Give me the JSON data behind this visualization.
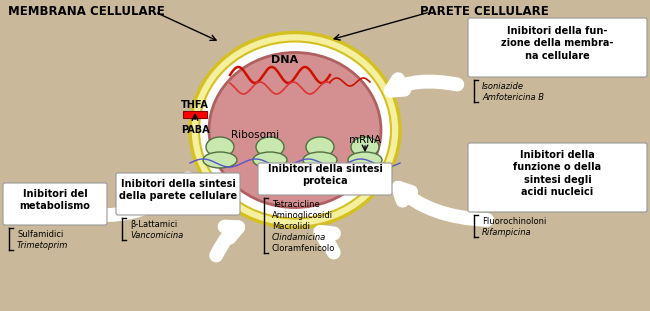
{
  "bg_color": "#c9b99a",
  "fig_width": 6.5,
  "fig_height": 3.11,
  "dpi": 100,
  "cell_wall_color": "#f5f0a0",
  "cell_wall_edge": "#d4c020",
  "cell_membrane_color": "#d49090",
  "cell_membrane_edge": "#b06060",
  "title_membrana": "MEMBRANA CELLULARE",
  "title_parete": "PARETE CELLULARE",
  "label_DNA": "DNA",
  "label_Ribosomi": "Ribosomi",
  "label_mRNA": "mRNA",
  "label_THFA": "THFA",
  "label_PABA": "PABA",
  "box1_title": "Inibitori del\nmetabolismo",
  "box1_items": [
    "Sulfamidici",
    "Trimetoprim"
  ],
  "box1_italic": [
    false,
    true
  ],
  "box2_title": "Inibitori della sintesi\ndella parete cellulare",
  "box2_items": [
    "β-Lattamici",
    "Vancomicina"
  ],
  "box2_italic": [
    false,
    true
  ],
  "box3_title": "Inibitori della sintesi\nproteica",
  "box3_items": [
    "Tetracicline",
    "Aminoglicosidi",
    "Macrolidi",
    "Clindamicina",
    "Cloramfenicolo"
  ],
  "box3_italic": [
    false,
    false,
    false,
    true,
    false
  ],
  "box4_title": "Inibitori della fun-\nzione della membra-\nna cellulare",
  "box4_items": [
    "Isoniazide",
    "Amfotericina B"
  ],
  "box4_italic": [
    true,
    true
  ],
  "box5_title": "Inibitori della\nfunzione o della\nsintesi degli\nacidi nucleici",
  "box5_items": [
    "Fluorochinoloni",
    "Rifampicina"
  ],
  "box5_italic": [
    false,
    true
  ]
}
